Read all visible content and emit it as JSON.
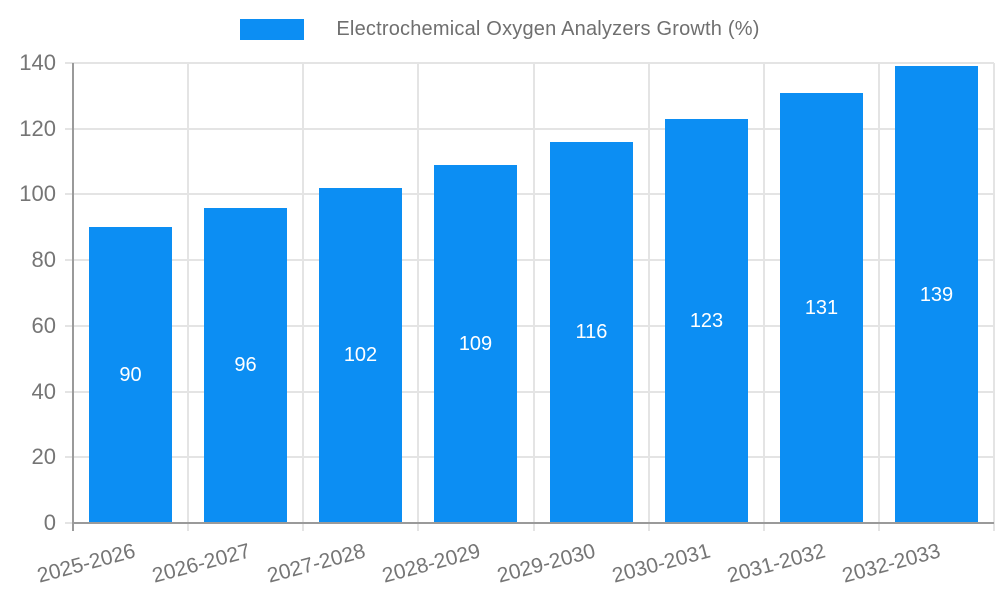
{
  "chart_data": {
    "type": "bar",
    "title": "Electrochemical Oxygen Analyzers Growth (%)",
    "categories": [
      "2025-2026",
      "2026-2027",
      "2027-2028",
      "2028-2029",
      "2029-2030",
      "2030-2031",
      "2031-2032",
      "2032-2033"
    ],
    "values": [
      90,
      96,
      102,
      109,
      116,
      123,
      131,
      139
    ],
    "xlabel": "",
    "ylabel": "",
    "ylim": [
      0,
      140
    ],
    "yticks": [
      0,
      20,
      40,
      60,
      80,
      100,
      120,
      140
    ],
    "grid": true,
    "legend_position": "top",
    "x_label_rotation_deg": -15,
    "colors": {
      "bar": "#0C8EF3",
      "bar_value_label": "#ffffff",
      "tick_label": "#757575",
      "legend_label": "#6f6f6f",
      "gridline": "#e4e4e4",
      "axis_line": "#9a9a9a",
      "background": "#ffffff"
    }
  }
}
